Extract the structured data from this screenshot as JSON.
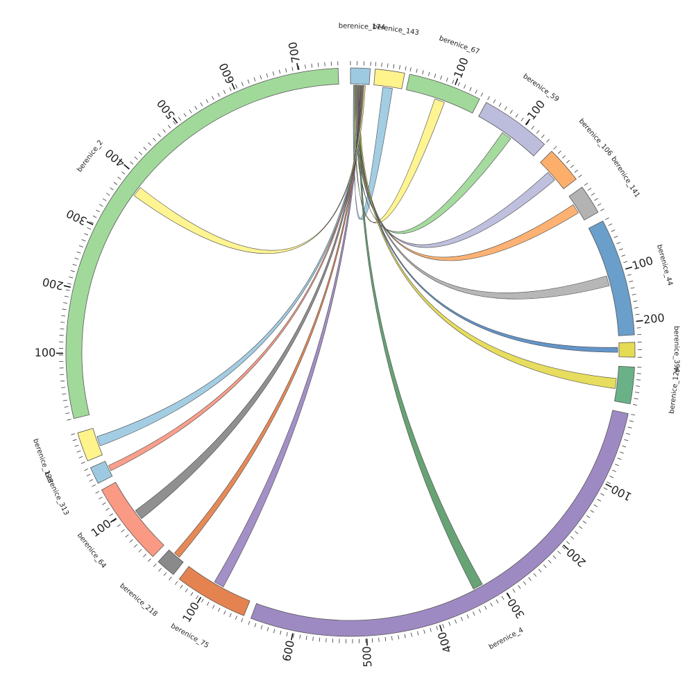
{
  "chart_data": {
    "type": "chord",
    "hub": "berenice_174",
    "segments": [
      {
        "name": "berenice_174",
        "start": 0.0,
        "end": 4.0,
        "color": "#9ecae1"
      },
      {
        "name": "berenice_143",
        "start": 5.0,
        "end": 11.0,
        "color": "#fff38c"
      },
      {
        "name": "berenice_67",
        "start": 12.0,
        "end": 27.0,
        "color": "#a1d99b",
        "ticks": [
          100
        ]
      },
      {
        "name": "berenice_59",
        "start": 28.5,
        "end": 43.0,
        "color": "#bcbddc",
        "ticks": [
          100
        ]
      },
      {
        "name": "berenice_106",
        "start": 45.0,
        "end": 52.5,
        "color": "#fdae6b"
      },
      {
        "name": "berenice_141",
        "start": 54.5,
        "end": 60.5,
        "color": "#b3b3b3"
      },
      {
        "name": "berenice_44",
        "start": 62.5,
        "end": 86.5,
        "color": "#6a9ecb",
        "ticks": [
          100,
          200
        ]
      },
      {
        "name": "berenice_394",
        "start": 88.0,
        "end": 91.0,
        "color": "#e6db55"
      },
      {
        "name": "berenice_124",
        "start": 93.0,
        "end": 100.5,
        "color": "#6ab187"
      },
      {
        "name": "berenice_4",
        "start": 102.5,
        "end": 200.5,
        "color": "#9e8ac3",
        "ticks": [
          100,
          200,
          300,
          400,
          500,
          600
        ]
      },
      {
        "name": "berenice_75",
        "start": 202.0,
        "end": 217.0,
        "color": "#e4834f",
        "ticks": [
          100
        ]
      },
      {
        "name": "berenice_218",
        "start": 218.5,
        "end": 222.5,
        "color": "#8a8a8a"
      },
      {
        "name": "berenice_64",
        "start": 224.0,
        "end": 241.0,
        "color": "#fa9a85",
        "ticks": [
          100
        ]
      },
      {
        "name": "berenice_313",
        "start": 242.5,
        "end": 246.0,
        "color": "#9ecae1"
      },
      {
        "name": "berenice_128",
        "start": 247.5,
        "end": 253.5,
        "color": "#fff38c"
      },
      {
        "name": "berenice_2",
        "start": 256.5,
        "end": 357.5,
        "color": "#a1d99b",
        "ticks": [
          100,
          200,
          300,
          400,
          500,
          600,
          700
        ]
      }
    ],
    "links": [
      {
        "segment": "berenice_143",
        "color": "#9ecae1"
      },
      {
        "segment": "berenice_67",
        "color": "#fff38c"
      },
      {
        "segment": "berenice_59",
        "color": "#a1d99b"
      },
      {
        "segment": "berenice_106",
        "color": "#bcbddc"
      },
      {
        "segment": "berenice_141",
        "color": "#fdae6b"
      },
      {
        "segment": "berenice_44",
        "color": "#b3b3b3"
      },
      {
        "segment": "berenice_394",
        "color": "#5b8fc7"
      },
      {
        "segment": "berenice_124",
        "color": "#e6db55"
      },
      {
        "segment": "berenice_4",
        "color": "#5f9e6e"
      },
      {
        "segment": "berenice_75",
        "color": "#9e8ac3"
      },
      {
        "segment": "berenice_218",
        "color": "#e4834f"
      },
      {
        "segment": "berenice_64",
        "color": "#8a8a8a"
      },
      {
        "segment": "berenice_313",
        "color": "#fa9a85"
      },
      {
        "segment": "berenice_128",
        "color": "#9ecae1"
      },
      {
        "segment": "berenice_2",
        "color": "#fff38c"
      }
    ]
  }
}
